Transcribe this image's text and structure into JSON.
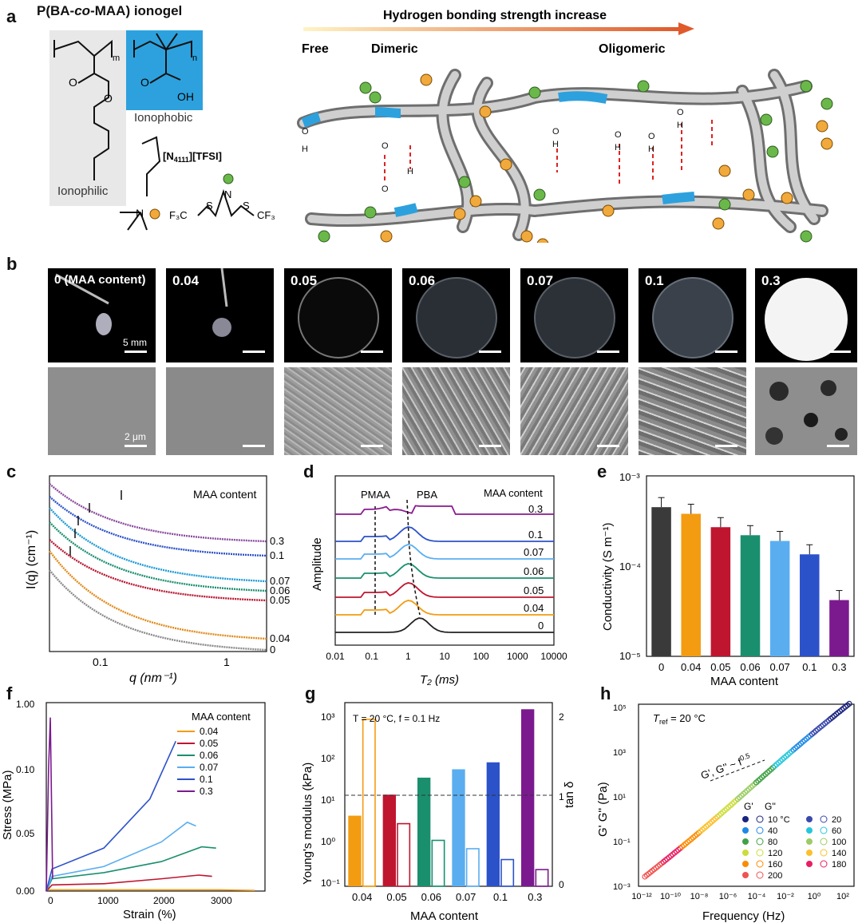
{
  "panels": {
    "a": "a",
    "b": "b",
    "c": "c",
    "d": "d",
    "e": "e",
    "f": "f",
    "g": "g",
    "h": "h"
  },
  "panel_a": {
    "title": "P(BA-co-MAA) ionogel",
    "title_parts": [
      "P(BA-",
      "co",
      "-MAA) ionogel"
    ],
    "ionophilic": "Ionophilic",
    "ionophobic": "Ionophobic",
    "sub_m": "m",
    "sub_n": "n",
    "oh": "OH",
    "ionic_liquid": "[N",
    "ionic_liquid_sub": "4111",
    "ionic_liquid_rest": "][TFSI]",
    "f3c": "F₃C",
    "cf3": "CF₃",
    "atoms": {
      "O": "O",
      "S": "S",
      "N": "N",
      "H": "H"
    },
    "arrow_title": "Hydrogen bonding strength increase",
    "states": [
      "Free",
      "Dimeric",
      "Oligomeric"
    ]
  },
  "panel_b": {
    "labels": [
      "0 (MAA content)",
      "0.04",
      "0.05",
      "0.06",
      "0.07",
      "0.1",
      "0.3"
    ],
    "scale_photo": "5 mm",
    "scale_sem": "2 μm"
  },
  "panel_c": {
    "legend_title": "MAA content",
    "xlabel": "q (nm⁻¹)",
    "ylabel": "I(q) (cm⁻¹)",
    "series_labels": [
      "0.3",
      "0.1",
      "0.07",
      "0.06",
      "0.05",
      "0.04",
      "0"
    ],
    "xticks": [
      "0.1",
      "1"
    ]
  },
  "panel_d": {
    "legend_title": "MAA content",
    "ylabel": "Amplitude",
    "xlabel": "T₂ (ms)",
    "ann_pmaa": "PMAA",
    "ann_pba": "PBA",
    "series_labels": [
      "0.3",
      "0.1",
      "0.07",
      "0.06",
      "0.05",
      "0.04",
      "0"
    ],
    "xticks": [
      "0.01",
      "0.1",
      "1",
      "10",
      "100",
      "1000",
      "10000"
    ]
  },
  "panel_g": {
    "annotation": "T = 20 °C, f = 0.1 Hz",
    "ylabel_left": "Young's modulus (kPa)",
    "ylabel_right": "tan δ",
    "xlabel": "MAA content",
    "right_ticks": [
      "0",
      "1",
      "2"
    ]
  },
  "panel_h": {
    "annotation": "T",
    "annotation_sub": "ref",
    "annotation_rest": " = 20 °C",
    "ylabel": "G' G'' (Pa)",
    "xlabel": "Frequency (Hz)",
    "slope_label": "G', G'' ~ f",
    "slope_exp": "0.5",
    "legend_headers": [
      "G'",
      "G''"
    ],
    "legend_temps": [
      "10 °C",
      "20",
      "40",
      "60",
      "80",
      "100",
      "120",
      "140",
      "160",
      "180",
      "200"
    ],
    "legend_colors": [
      "#1a237e",
      "#3949ab",
      "#1e88e5",
      "#26c6da",
      "#43a047",
      "#9ccc65",
      "#cddc39",
      "#fbc02d",
      "#fb8c00",
      "#e91e63",
      "#ef5350"
    ]
  },
  "chart_data": [
    {
      "type": "bar",
      "panel": "e",
      "categories": [
        "0",
        "0.04",
        "0.05",
        "0.06",
        "0.07",
        "0.1",
        "0.3"
      ],
      "values": [
        0.00045,
        0.00038,
        0.00027,
        0.00022,
        0.00019,
        0.000135,
        4.2e-05
      ],
      "colors": [
        "#3a3a3a",
        "#f39c12",
        "#c0152f",
        "#1a8f6e",
        "#5aaef0",
        "#2c52c9",
        "#7b1a8f"
      ],
      "xlabel": "MAA content",
      "ylabel": "Conductivity (S m⁻¹)",
      "ylim": [
        1e-05,
        0.001
      ],
      "yscale": "log"
    },
    {
      "type": "line",
      "panel": "f",
      "xlabel": "Strain (%)",
      "ylabel": "Stress (MPa)",
      "legend_title": "MAA content",
      "xticks": [
        "0",
        "1000",
        "2000",
        "3000"
      ],
      "yticks": [
        "0.00",
        "0.05",
        "0.10",
        "1.00"
      ],
      "series": [
        {
          "name": "0.04",
          "color": "#f39c12",
          "x": [
            0,
            1000,
            2000,
            3000,
            3620
          ],
          "y": [
            0.001,
            0.001,
            0.001,
            0.001,
            0.0005
          ]
        },
        {
          "name": "0.05",
          "color": "#c0152f",
          "x": [
            0,
            100,
            1000,
            2000,
            2650,
            2880
          ],
          "y": [
            0.0,
            0.005,
            0.006,
            0.01,
            0.013,
            0.012
          ]
        },
        {
          "name": "0.06",
          "color": "#1a8f6e",
          "x": [
            0,
            100,
            1000,
            2000,
            2700,
            2950
          ],
          "y": [
            0.0,
            0.01,
            0.015,
            0.024,
            0.036,
            0.035
          ]
        },
        {
          "name": "0.07",
          "color": "#5aaef0",
          "x": [
            0,
            100,
            1000,
            2000,
            2450,
            2600
          ],
          "y": [
            0.0,
            0.012,
            0.02,
            0.04,
            0.056,
            0.053
          ]
        },
        {
          "name": "0.1",
          "color": "#2c52c9",
          "x": [
            0,
            100,
            1000,
            1800,
            2250
          ],
          "y": [
            0.0,
            0.018,
            0.035,
            0.075,
            0.122
          ]
        },
        {
          "name": "0.3",
          "color": "#7b1a8f",
          "x": [
            0,
            40,
            70,
            110
          ],
          "y": [
            0.0,
            0.1,
            0.55,
            0.01
          ]
        }
      ]
    },
    {
      "type": "bar",
      "panel": "g",
      "categories": [
        "0.04",
        "0.05",
        "0.06",
        "0.07",
        "0.1",
        "0.3"
      ],
      "series": [
        {
          "name": "Young's modulus",
          "values": [
            4.5,
            14,
            35,
            55,
            80,
            1400
          ]
        },
        {
          "name": "tan δ",
          "values": [
            2.0,
            0.75,
            0.55,
            0.45,
            0.32,
            0.2
          ]
        }
      ],
      "colors": [
        "#f39c12",
        "#c0152f",
        "#1a8f6e",
        "#5aaef0",
        "#2c52c9",
        "#7b1a8f"
      ],
      "xlabel": "MAA content",
      "ylim": [
        0.1,
        2000
      ],
      "yscale": "log",
      "ylim_right": [
        0,
        2.2
      ]
    }
  ],
  "axes": {
    "e_yticks": [
      "10⁻³",
      "10⁻⁴",
      "10⁻⁵"
    ],
    "g_yticks": [
      "10³",
      "10²",
      "10¹",
      "10⁰",
      "10⁻¹"
    ],
    "h_yticks": [
      "10⁵",
      "10³",
      "10¹",
      "10⁻¹",
      "10⁻³"
    ],
    "h_xticks": [
      "10⁻¹²",
      "10⁻¹⁰",
      "10⁻⁸",
      "10⁻⁶",
      "10⁻⁴",
      "10⁻²",
      "10⁰",
      "10²"
    ]
  }
}
